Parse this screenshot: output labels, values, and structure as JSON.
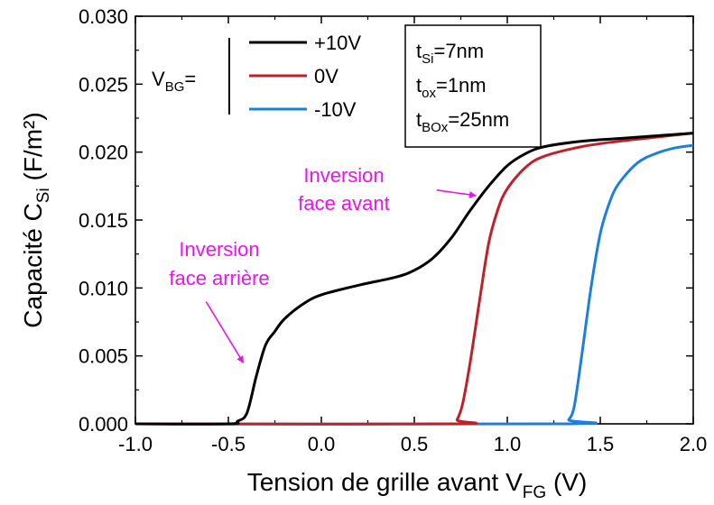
{
  "chart_data": {
    "type": "line",
    "xlabel_main": "Tension de grille avant V",
    "xlabel_sub": "FG",
    "xlabel_tail": " (V)",
    "ylabel_main": "Capacité C",
    "ylabel_sub": "Si",
    "ylabel_tail": "  (F/m²)",
    "xlim": [
      -1.0,
      2.0
    ],
    "ylim": [
      0.0,
      0.03
    ],
    "x_ticks": [
      -1.0,
      -0.5,
      0.0,
      0.5,
      1.0,
      1.5,
      2.0
    ],
    "x_tick_labels": [
      "-1.0",
      "-0.5",
      "0.0",
      "0.5",
      "1.0",
      "1.5",
      "2.0"
    ],
    "y_ticks": [
      0.0,
      0.005,
      0.01,
      0.015,
      0.02,
      0.025,
      0.03
    ],
    "y_tick_labels": [
      "0.000",
      "0.005",
      "0.010",
      "0.015",
      "0.020",
      "0.025",
      "0.030"
    ],
    "grid": false,
    "legend": {
      "placement": "top-left",
      "prefix_main": "V",
      "prefix_sub": "BG",
      "prefix_tail": "="
    },
    "series": [
      {
        "name": "+10V",
        "color": "#000000",
        "x": [
          -1.0,
          -0.5,
          -0.45,
          -0.4,
          -0.35,
          -0.3,
          -0.25,
          -0.2,
          -0.1,
          0.0,
          0.2,
          0.4,
          0.5,
          0.6,
          0.7,
          0.8,
          0.9,
          1.0,
          1.1,
          1.2,
          1.4,
          1.6,
          1.8,
          2.0
        ],
        "y": [
          0.0,
          0.0,
          0.0002,
          0.0008,
          0.0035,
          0.0058,
          0.0068,
          0.0077,
          0.0088,
          0.0095,
          0.0102,
          0.0108,
          0.0113,
          0.0122,
          0.0137,
          0.0157,
          0.0175,
          0.019,
          0.0199,
          0.0204,
          0.0208,
          0.021,
          0.0212,
          0.0214
        ]
      },
      {
        "name": "0V",
        "color": "#c0202a",
        "x": [
          -1.0,
          0.7,
          0.73,
          0.76,
          0.8,
          0.85,
          0.9,
          0.95,
          1.0,
          1.1,
          1.2,
          1.4,
          1.6,
          1.8,
          2.0
        ],
        "y": [
          0.0,
          0.0,
          0.0003,
          0.0015,
          0.0045,
          0.009,
          0.0133,
          0.0158,
          0.0173,
          0.0189,
          0.0197,
          0.0204,
          0.0208,
          0.0211,
          0.0214
        ]
      },
      {
        "name": "-10V",
        "color": "#1c7fe0",
        "x": [
          -1.0,
          1.3,
          1.33,
          1.36,
          1.4,
          1.45,
          1.5,
          1.55,
          1.6,
          1.7,
          1.8,
          1.9,
          2.0
        ],
        "y": [
          0.0,
          0.0,
          0.0003,
          0.0013,
          0.005,
          0.01,
          0.014,
          0.0163,
          0.0177,
          0.0192,
          0.0199,
          0.0203,
          0.0205
        ]
      }
    ],
    "params_box": [
      {
        "main": "t",
        "sub": "Si",
        "tail": "=7nm"
      },
      {
        "main": "t",
        "sub": "ox",
        "tail": "=1nm"
      },
      {
        "main": "t",
        "sub": "BOx",
        "tail": "=25nm"
      }
    ],
    "annotations": [
      {
        "name": "inversion-face-avant",
        "line1": "Inversion",
        "line2": "face avant",
        "color": "#ee10ee",
        "arrow_from": [
          0.62,
          0.0172
        ],
        "arrow_to": [
          0.83,
          0.0168
        ]
      },
      {
        "name": "inversion-face-arriere",
        "line1": "Inversion",
        "line2": "face arrière",
        "color": "#ee10ee",
        "arrow_from": [
          -0.62,
          0.009
        ],
        "arrow_to": [
          -0.42,
          0.0045
        ]
      }
    ]
  }
}
